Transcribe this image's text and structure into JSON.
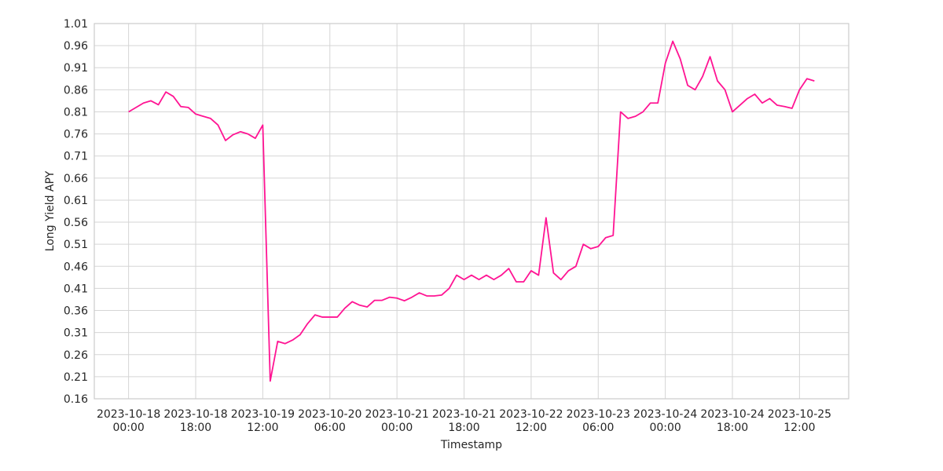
{
  "chart_data": {
    "type": "line",
    "xlabel": "Timestamp",
    "ylabel": "Long Yield APY",
    "x": [
      "2023-10-18 00:00",
      "2023-10-18 02:00",
      "2023-10-18 04:00",
      "2023-10-18 06:00",
      "2023-10-18 08:00",
      "2023-10-18 10:00",
      "2023-10-18 12:00",
      "2023-10-18 14:00",
      "2023-10-18 16:00",
      "2023-10-18 18:00",
      "2023-10-18 20:00",
      "2023-10-18 22:00",
      "2023-10-19 00:00",
      "2023-10-19 02:00",
      "2023-10-19 04:00",
      "2023-10-19 06:00",
      "2023-10-19 08:00",
      "2023-10-19 10:00",
      "2023-10-19 12:00",
      "2023-10-19 14:00",
      "2023-10-19 16:00",
      "2023-10-19 18:00",
      "2023-10-19 20:00",
      "2023-10-19 22:00",
      "2023-10-20 00:00",
      "2023-10-20 02:00",
      "2023-10-20 04:00",
      "2023-10-20 06:00",
      "2023-10-20 08:00",
      "2023-10-20 10:00",
      "2023-10-20 12:00",
      "2023-10-20 14:00",
      "2023-10-20 16:00",
      "2023-10-20 18:00",
      "2023-10-20 20:00",
      "2023-10-20 22:00",
      "2023-10-21 00:00",
      "2023-10-21 02:00",
      "2023-10-21 04:00",
      "2023-10-21 06:00",
      "2023-10-21 08:00",
      "2023-10-21 10:00",
      "2023-10-21 12:00",
      "2023-10-21 14:00",
      "2023-10-21 16:00",
      "2023-10-21 18:00",
      "2023-10-21 20:00",
      "2023-10-21 22:00",
      "2023-10-22 00:00",
      "2023-10-22 02:00",
      "2023-10-22 04:00",
      "2023-10-22 06:00",
      "2023-10-22 08:00",
      "2023-10-22 10:00",
      "2023-10-22 12:00",
      "2023-10-22 14:00",
      "2023-10-22 16:00",
      "2023-10-22 18:00",
      "2023-10-22 20:00",
      "2023-10-22 22:00",
      "2023-10-23 00:00",
      "2023-10-23 02:00",
      "2023-10-23 04:00",
      "2023-10-23 06:00",
      "2023-10-23 08:00",
      "2023-10-23 10:00",
      "2023-10-23 12:00",
      "2023-10-23 14:00",
      "2023-10-23 16:00",
      "2023-10-23 18:00",
      "2023-10-23 20:00",
      "2023-10-23 22:00",
      "2023-10-24 00:00",
      "2023-10-24 02:00",
      "2023-10-24 04:00",
      "2023-10-24 06:00",
      "2023-10-24 08:00",
      "2023-10-24 10:00",
      "2023-10-24 12:00",
      "2023-10-24 14:00",
      "2023-10-24 16:00",
      "2023-10-24 18:00",
      "2023-10-24 20:00",
      "2023-10-24 22:00",
      "2023-10-25 00:00",
      "2023-10-25 02:00",
      "2023-10-25 04:00",
      "2023-10-25 06:00",
      "2023-10-25 08:00",
      "2023-10-25 10:00",
      "2023-10-25 12:00",
      "2023-10-25 14:00",
      "2023-10-25 16:00"
    ],
    "series": [
      {
        "name": "Long Yield APY",
        "color": "#ff1493",
        "values": [
          0.81,
          0.82,
          0.83,
          0.835,
          0.826,
          0.855,
          0.845,
          0.822,
          0.82,
          0.805,
          0.8,
          0.795,
          0.78,
          0.745,
          0.758,
          0.765,
          0.76,
          0.75,
          0.78,
          0.2,
          0.29,
          0.285,
          0.293,
          0.305,
          0.33,
          0.35,
          0.345,
          0.345,
          0.345,
          0.365,
          0.38,
          0.372,
          0.368,
          0.383,
          0.383,
          0.39,
          0.388,
          0.382,
          0.39,
          0.4,
          0.393,
          0.393,
          0.395,
          0.41,
          0.44,
          0.43,
          0.44,
          0.43,
          0.44,
          0.43,
          0.44,
          0.455,
          0.425,
          0.425,
          0.45,
          0.44,
          0.57,
          0.445,
          0.43,
          0.45,
          0.46,
          0.51,
          0.5,
          0.505,
          0.525,
          0.53,
          0.81,
          0.795,
          0.8,
          0.81,
          0.83,
          0.83,
          0.92,
          0.97,
          0.93,
          0.87,
          0.86,
          0.89,
          0.935,
          0.88,
          0.86,
          0.81,
          0.825,
          0.84,
          0.85,
          0.83,
          0.84,
          0.825,
          0.822,
          0.818,
          0.86,
          0.885,
          0.88
        ]
      }
    ],
    "xlim": [
      "2023-10-17 14:48",
      "2023-10-26 01:12"
    ],
    "xticks": [
      "2023-10-18 00:00",
      "2023-10-18 18:00",
      "2023-10-19 12:00",
      "2023-10-20 06:00",
      "2023-10-21 00:00",
      "2023-10-21 18:00",
      "2023-10-22 12:00",
      "2023-10-23 06:00",
      "2023-10-24 00:00",
      "2023-10-24 18:00",
      "2023-10-25 12:00"
    ],
    "ylim": [
      0.16,
      1.01
    ],
    "yticks": [
      0.16,
      0.21,
      0.26,
      0.31,
      0.36,
      0.41,
      0.46,
      0.51,
      0.56,
      0.61,
      0.66,
      0.71,
      0.76,
      0.81,
      0.86,
      0.91,
      0.96,
      1.01
    ],
    "grid": true
  }
}
